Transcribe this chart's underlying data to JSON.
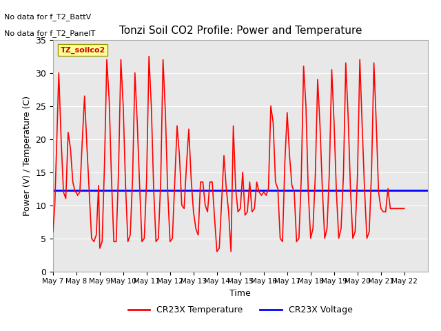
{
  "title": "Tonzi Soil CO2 Profile: Power and Temperature",
  "ylabel": "Power (V) / Temperature (C)",
  "xlabel": "Time",
  "no_data_labels": [
    "No data for f_T2_BattV",
    "No data for f_T2_PanelT"
  ],
  "legend_label_box": "TZ_soilco2",
  "ylim": [
    0,
    35
  ],
  "yticks": [
    0,
    5,
    10,
    15,
    20,
    25,
    30,
    35
  ],
  "xlim_start": 0,
  "xlim_end": 16,
  "xtick_labels": [
    "May 7",
    "May 8",
    "May 9",
    "May 10",
    "May 11",
    "May 12",
    "May 13",
    "May 14",
    "May 15",
    "May 16",
    "May 17",
    "May 18",
    "May 19",
    "May 20",
    "May 21",
    "May 22"
  ],
  "voltage_value": 12.3,
  "temp_color": "#ff0000",
  "voltage_color": "#0000ff",
  "bg_color": "#e8e8e8",
  "plot_bg_color": "#e8e8e8",
  "legend_box_color": "#ffff99",
  "legend_box_edge": "#999900",
  "temp_x": [
    0.0,
    0.08,
    0.15,
    0.25,
    0.35,
    0.45,
    0.55,
    0.65,
    0.75,
    0.85,
    0.95,
    1.0,
    1.05,
    1.15,
    1.25,
    1.35,
    1.45,
    1.55,
    1.65,
    1.75,
    1.85,
    1.95,
    2.0,
    2.1,
    2.2,
    2.3,
    2.4,
    2.5,
    2.6,
    2.7,
    2.8,
    2.9,
    3.0,
    3.1,
    3.2,
    3.3,
    3.4,
    3.5,
    3.6,
    3.7,
    3.8,
    3.9,
    4.0,
    4.1,
    4.2,
    4.3,
    4.4,
    4.5,
    4.6,
    4.7,
    4.8,
    4.9,
    5.0,
    5.1,
    5.2,
    5.3,
    5.4,
    5.5,
    5.6,
    5.7,
    5.8,
    5.9,
    6.0,
    6.1,
    6.2,
    6.3,
    6.4,
    6.5,
    6.6,
    6.7,
    6.8,
    6.9,
    7.0,
    7.1,
    7.2,
    7.3,
    7.4,
    7.5,
    7.6,
    7.7,
    7.8,
    7.9,
    8.0,
    8.1,
    8.2,
    8.3,
    8.4,
    8.5,
    8.6,
    8.7,
    8.8,
    8.9,
    9.0,
    9.1,
    9.2,
    9.3,
    9.4,
    9.5,
    9.6,
    9.7,
    9.8,
    9.9,
    10.0,
    10.1,
    10.2,
    10.3,
    10.4,
    10.5,
    10.6,
    10.7,
    10.8,
    10.9,
    11.0,
    11.1,
    11.2,
    11.3,
    11.4,
    11.5,
    11.6,
    11.7,
    11.8,
    11.9,
    12.0,
    12.1,
    12.2,
    12.3,
    12.4,
    12.5,
    12.6,
    12.7,
    12.8,
    12.9,
    13.0,
    13.1,
    13.2,
    13.3,
    13.4,
    13.5,
    13.6,
    13.7,
    13.8,
    13.9,
    14.0,
    14.1,
    14.2,
    14.3,
    14.4,
    14.5,
    14.6,
    14.7,
    14.8,
    14.9,
    15.0
  ],
  "temp_y": [
    6.0,
    10.0,
    18.0,
    30.0,
    20.0,
    12.0,
    11.0,
    21.0,
    18.5,
    13.5,
    12.0,
    12.0,
    11.5,
    12.0,
    19.5,
    26.5,
    19.0,
    12.0,
    5.0,
    4.5,
    5.5,
    13.0,
    3.5,
    4.5,
    16.0,
    32.0,
    26.0,
    14.0,
    4.5,
    4.5,
    15.0,
    32.0,
    25.0,
    13.0,
    4.5,
    5.5,
    14.0,
    30.0,
    22.5,
    13.0,
    4.5,
    5.0,
    14.0,
    32.5,
    25.0,
    12.5,
    4.5,
    5.0,
    13.5,
    32.0,
    24.0,
    12.0,
    4.5,
    5.0,
    13.5,
    22.0,
    17.5,
    10.0,
    9.5,
    16.0,
    21.5,
    14.0,
    9.0,
    6.5,
    5.5,
    13.5,
    13.5,
    10.0,
    9.0,
    13.5,
    13.5,
    8.0,
    3.0,
    3.5,
    10.5,
    17.5,
    12.5,
    9.0,
    3.0,
    22.0,
    12.5,
    9.0,
    9.5,
    15.0,
    8.5,
    9.0,
    13.5,
    9.0,
    9.5,
    13.5,
    12.0,
    11.5,
    12.0,
    11.5,
    12.5,
    25.0,
    22.5,
    13.5,
    12.5,
    5.0,
    4.5,
    16.5,
    24.0,
    17.5,
    13.0,
    12.0,
    4.5,
    5.0,
    14.0,
    31.0,
    25.0,
    12.0,
    5.0,
    6.5,
    14.5,
    29.0,
    22.0,
    12.5,
    5.0,
    6.5,
    15.0,
    30.5,
    22.5,
    12.0,
    5.0,
    6.5,
    14.5,
    31.5,
    23.5,
    12.5,
    5.0,
    6.0,
    14.5,
    32.0,
    22.0,
    12.5,
    5.0,
    6.0,
    15.0,
    31.5,
    22.5,
    12.0,
    9.5,
    9.0,
    9.0,
    12.5,
    9.5,
    9.5,
    9.5,
    9.5,
    9.5,
    9.5,
    9.5
  ]
}
